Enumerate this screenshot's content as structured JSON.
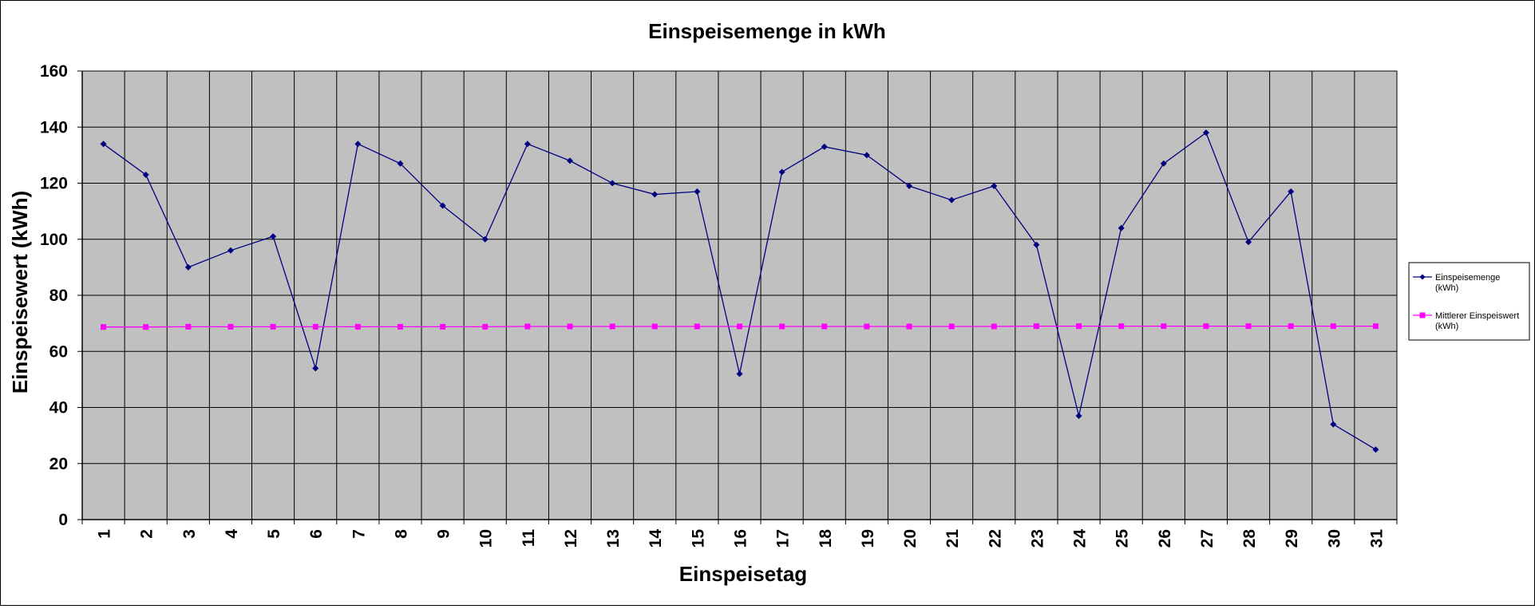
{
  "chart_data": {
    "type": "line",
    "title": "Einspeisemenge in kWh",
    "xlabel": "Einspeisetag",
    "ylabel": "Einspeisewert  (kWh)",
    "categories": [
      "1",
      "2",
      "3",
      "4",
      "5",
      "6",
      "7",
      "8",
      "9",
      "10",
      "11",
      "12",
      "13",
      "14",
      "15",
      "16",
      "17",
      "18",
      "19",
      "20",
      "21",
      "22",
      "23",
      "24",
      "25",
      "26",
      "27",
      "28",
      "29",
      "30",
      "31"
    ],
    "ylim": [
      0,
      160
    ],
    "yticks": [
      0,
      20,
      40,
      60,
      80,
      100,
      120,
      140,
      160
    ],
    "grid": true,
    "legend_position": "right",
    "series": [
      {
        "name_lines": [
          "Einspeisemenge",
          "(kWh)"
        ],
        "color": "#000080",
        "marker": "diamond",
        "values": [
          134,
          123,
          90,
          96,
          101,
          54,
          134,
          127,
          112,
          100,
          134,
          128,
          120,
          116,
          117,
          52,
          124,
          133,
          130,
          119,
          114,
          119,
          98,
          37,
          104,
          127,
          138,
          99,
          117,
          34,
          25
        ]
      },
      {
        "name_lines": [
          "Mittlerer Einspeiswert",
          "(kWh)"
        ],
        "color": "#ff00ff",
        "marker": "square",
        "values": [
          68.7,
          68.7,
          68.8,
          68.8,
          68.8,
          68.8,
          68.8,
          68.8,
          68.8,
          68.8,
          68.9,
          68.9,
          68.9,
          68.9,
          68.9,
          68.9,
          68.9,
          68.9,
          68.9,
          68.9,
          68.9,
          68.9,
          69.0,
          69.0,
          69.0,
          69.0,
          69.0,
          69.0,
          69.0,
          69.0,
          69.0
        ]
      }
    ],
    "plot_background": "#c0c0c0"
  }
}
